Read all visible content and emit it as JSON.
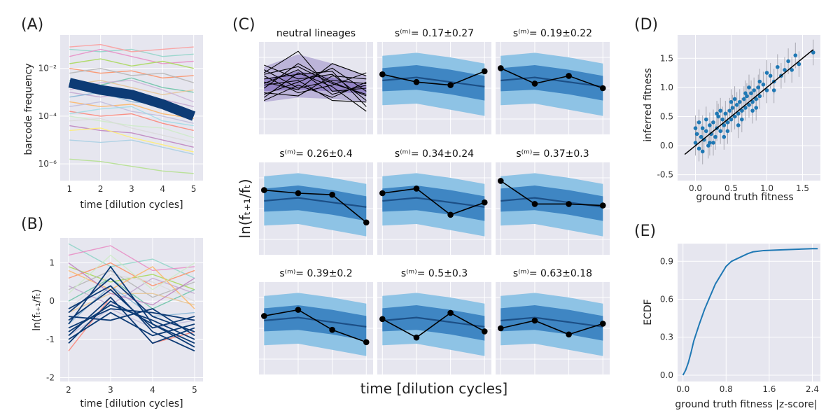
{
  "colors": {
    "panel_bg": "#e6e6ef",
    "grid": "#ffffff",
    "bright_blue": "#0d3b75",
    "blue_outer": "#8ec3e5",
    "blue_inner": "#3f86c3",
    "blue_line": "#1c4f86",
    "purple_band": "#b7aed6",
    "purple_line": "#4a2e8a",
    "scatter_point": "#1f78b4",
    "ecdf_line": "#1f78b4",
    "black": "#000000"
  },
  "chart_data": [
    {
      "id": "A",
      "panel_label": "(A)",
      "type": "line",
      "xlabel": "time [dilution cycles]",
      "ylabel": "barcode frequency",
      "yscale": "log",
      "xlim": [
        0.7,
        5.3
      ],
      "ylim_log10": [
        -6.7,
        -0.6
      ],
      "xticks": [
        1,
        2,
        3,
        4,
        5
      ],
      "xtick_labels": [
        "1",
        "2",
        "3",
        "4",
        "5"
      ],
      "yticks_log10": [
        -2,
        -4,
        -6
      ],
      "ytick_labels": [
        "10⁻²",
        "10⁻⁴",
        "10⁻⁶"
      ],
      "x": [
        1,
        2,
        3,
        4,
        5
      ],
      "highlight_series": {
        "values_log10": [
          -2.6,
          -2.9,
          -3.1,
          -3.5,
          -4.0
        ]
      },
      "background_series_log10": [
        [
          -1.2,
          -1.3,
          -1.2,
          -1.5,
          -1.4
        ],
        [
          -1.5,
          -1.2,
          -1.5,
          -1.8,
          -1.7
        ],
        [
          -1.8,
          -1.6,
          -1.9,
          -1.7,
          -2.0
        ],
        [
          -2.0,
          -2.2,
          -2.1,
          -2.4,
          -2.3
        ],
        [
          -2.2,
          -2.0,
          -2.3,
          -2.2,
          -2.6
        ],
        [
          -2.5,
          -2.7,
          -2.4,
          -2.8,
          -3.0
        ],
        [
          -2.7,
          -2.5,
          -2.8,
          -3.1,
          -2.9
        ],
        [
          -3.0,
          -3.2,
          -3.0,
          -3.3,
          -3.6
        ],
        [
          -3.2,
          -3.0,
          -3.4,
          -3.5,
          -3.8
        ],
        [
          -3.4,
          -3.6,
          -3.5,
          -3.9,
          -4.1
        ],
        [
          -3.6,
          -3.4,
          -3.8,
          -4.0,
          -4.3
        ],
        [
          -3.8,
          -4.0,
          -3.9,
          -4.3,
          -4.6
        ],
        [
          -4.0,
          -4.2,
          -4.4,
          -4.5,
          -4.9
        ],
        [
          -4.2,
          -4.1,
          -4.5,
          -4.8,
          -5.1
        ],
        [
          -4.4,
          -4.6,
          -4.7,
          -5.0,
          -5.3
        ],
        [
          -4.6,
          -4.5,
          -4.9,
          -5.2,
          -5.5
        ],
        [
          -5.0,
          -5.1,
          -5.0,
          -5.3,
          -5.6
        ],
        [
          -5.8,
          -5.9,
          -6.1,
          -6.3,
          -6.4
        ],
        [
          -1.1,
          -1.0,
          -1.3,
          -1.2,
          -1.1
        ],
        [
          -2.9,
          -2.6,
          -2.5,
          -2.9,
          -3.4
        ],
        [
          -3.9,
          -3.7,
          -3.6,
          -4.2,
          -4.4
        ]
      ]
    },
    {
      "id": "B",
      "panel_label": "(B)",
      "type": "line",
      "xlabel": "time [dilution cycles]",
      "ylabel": "ln(fₜ₊₁/fₜ)",
      "xlim": [
        1.8,
        5.2
      ],
      "ylim": [
        -2.1,
        1.65
      ],
      "xticks": [
        2,
        3,
        4,
        5
      ],
      "xtick_labels": [
        "2",
        "3",
        "4",
        "5"
      ],
      "yticks": [
        1,
        0,
        -1,
        -2
      ],
      "ytick_labels": [
        "1",
        "0",
        "-1",
        "-2"
      ],
      "x": [
        2,
        3,
        4,
        5
      ],
      "background_series": [
        [
          1.5,
          0.9,
          1.1,
          0.6
        ],
        [
          1.2,
          1.45,
          0.8,
          0.9
        ],
        [
          0.9,
          0.5,
          0.7,
          0.3
        ],
        [
          0.6,
          1.0,
          0.4,
          0.8
        ],
        [
          0.3,
          0.8,
          0.1,
          0.5
        ],
        [
          0.0,
          0.6,
          -0.2,
          0.3
        ],
        [
          -0.3,
          0.2,
          0.2,
          -0.1
        ],
        [
          0.4,
          -0.1,
          0.6,
          0.2
        ],
        [
          -0.6,
          0.4,
          -0.4,
          -0.3
        ],
        [
          0.8,
          0.3,
          0.9,
          -0.2
        ],
        [
          -0.9,
          -0.2,
          -0.7,
          -0.5
        ],
        [
          -1.3,
          0.1,
          -1.1,
          -0.8
        ],
        [
          0.2,
          1.2,
          0.3,
          1.0
        ],
        [
          -0.2,
          0.7,
          0.5,
          0.0
        ],
        [
          1.0,
          0.2,
          -0.1,
          0.6
        ]
      ],
      "highlight_series": [
        [
          -0.5,
          0.3,
          -0.7,
          -0.4
        ],
        [
          -0.8,
          -0.1,
          -0.5,
          -1.0
        ],
        [
          -0.3,
          0.6,
          -0.4,
          -0.8
        ],
        [
          -1.0,
          -0.3,
          -0.9,
          -0.6
        ],
        [
          -0.6,
          0.9,
          -0.6,
          -1.2
        ],
        [
          -0.4,
          -0.5,
          -0.2,
          -0.9
        ],
        [
          -0.9,
          0.1,
          -1.1,
          -0.7
        ],
        [
          -0.2,
          0.4,
          -0.8,
          -1.3
        ],
        [
          -0.7,
          -0.2,
          -0.3,
          -0.5
        ],
        [
          -1.1,
          0.0,
          -0.6,
          -1.1
        ]
      ]
    },
    {
      "id": "C",
      "panel_label": "(C)",
      "type": "line",
      "xlabel": "time [dilution cycles]",
      "ylabel": "ln(fₜ₊₁/fₜ)",
      "x": [
        1,
        2,
        3,
        4
      ],
      "ylim": [
        -3,
        3
      ],
      "subplots": [
        {
          "kind": "neutral",
          "title": "neutral lineages",
          "band_outer_low": [
            -0.9,
            -0.6,
            -0.7,
            -0.9
          ],
          "band_outer_high": [
            1.4,
            2.2,
            1.6,
            0.8
          ],
          "band_inner_low": [
            -0.2,
            -0.1,
            -0.2,
            -0.4
          ],
          "band_inner_high": [
            0.6,
            1.1,
            0.7,
            0.2
          ],
          "lines": [
            [
              0.3,
              1.2,
              -0.4,
              0.2
            ],
            [
              1.5,
              0.6,
              0.9,
              -0.8
            ],
            [
              -0.4,
              0.4,
              1.3,
              -0.2
            ],
            [
              0.8,
              -0.3,
              0.2,
              1.0
            ],
            [
              0.0,
              1.6,
              0.4,
              -0.5
            ],
            [
              -0.8,
              0.2,
              -0.6,
              0.4
            ],
            [
              0.6,
              0.9,
              1.1,
              -1.2
            ],
            [
              1.0,
              2.4,
              -0.2,
              0.0
            ],
            [
              -0.3,
              -0.5,
              0.8,
              0.6
            ],
            [
              0.2,
              0.5,
              -0.8,
              -0.9
            ],
            [
              1.2,
              0.0,
              0.5,
              0.3
            ],
            [
              -0.6,
              1.0,
              0.1,
              -1.5
            ],
            [
              0.4,
              -0.1,
              1.6,
              0.8
            ],
            [
              0.9,
              1.4,
              0.3,
              -0.4
            ]
          ]
        },
        {
          "kind": "fit",
          "title": "s⁽ᵐ⁾= 0.17±0.27",
          "outer_low": [
            -1.1,
            -1.0,
            -1.4,
            -1.8
          ],
          "outer_high": [
            2.1,
            2.3,
            2.0,
            1.6
          ],
          "inner_low": [
            -0.2,
            -0.1,
            -0.4,
            -0.8
          ],
          "inner_high": [
            1.3,
            1.5,
            1.2,
            0.8
          ],
          "median": [
            0.5,
            0.7,
            0.4,
            0.1
          ],
          "obs": [
            0.9,
            0.4,
            0.2,
            1.1
          ]
        },
        {
          "kind": "fit",
          "title": "s⁽ᵐ⁾= 0.19±0.22",
          "outer_low": [
            -1.1,
            -1.0,
            -1.4,
            -1.8
          ],
          "outer_high": [
            2.1,
            2.3,
            2.0,
            1.6
          ],
          "inner_low": [
            -0.2,
            -0.1,
            -0.4,
            -0.8
          ],
          "inner_high": [
            1.3,
            1.5,
            1.2,
            0.8
          ],
          "median": [
            0.5,
            0.7,
            0.4,
            0.1
          ],
          "obs": [
            1.3,
            0.3,
            0.8,
            0.0
          ]
        },
        {
          "kind": "fit",
          "title": "s⁽ᵐ⁾= 0.26±0.4",
          "outer_low": [
            -1.1,
            -1.0,
            -1.4,
            -1.8
          ],
          "outer_high": [
            2.1,
            2.3,
            2.0,
            1.6
          ],
          "inner_low": [
            -0.2,
            -0.1,
            -0.4,
            -0.8
          ],
          "inner_high": [
            1.3,
            1.5,
            1.2,
            0.8
          ],
          "median": [
            0.5,
            0.7,
            0.4,
            0.1
          ],
          "obs": [
            1.2,
            1.0,
            0.9,
            -0.9
          ]
        },
        {
          "kind": "fit",
          "title": "s⁽ᵐ⁾= 0.34±0.24",
          "outer_low": [
            -1.1,
            -1.0,
            -1.4,
            -1.8
          ],
          "outer_high": [
            2.1,
            2.3,
            2.0,
            1.6
          ],
          "inner_low": [
            -0.2,
            -0.1,
            -0.4,
            -0.8
          ],
          "inner_high": [
            1.3,
            1.5,
            1.2,
            0.8
          ],
          "median": [
            0.5,
            0.7,
            0.4,
            0.1
          ],
          "obs": [
            1.0,
            1.3,
            -0.4,
            0.4
          ]
        },
        {
          "kind": "fit",
          "title": "s⁽ᵐ⁾= 0.37±0.3",
          "outer_low": [
            -1.1,
            -1.0,
            -1.4,
            -1.8
          ],
          "outer_high": [
            2.1,
            2.3,
            2.0,
            1.6
          ],
          "inner_low": [
            -0.2,
            -0.1,
            -0.4,
            -0.8
          ],
          "inner_high": [
            1.3,
            1.5,
            1.2,
            0.8
          ],
          "median": [
            0.5,
            0.7,
            0.4,
            0.1
          ],
          "obs": [
            1.8,
            0.3,
            0.3,
            0.2
          ]
        },
        {
          "kind": "fit",
          "title": "s⁽ᵐ⁾= 0.39±0.2",
          "outer_low": [
            -1.1,
            -1.0,
            -1.4,
            -1.8
          ],
          "outer_high": [
            2.1,
            2.3,
            2.0,
            1.6
          ],
          "inner_low": [
            -0.2,
            -0.1,
            -0.4,
            -0.8
          ],
          "inner_high": [
            1.3,
            1.5,
            1.2,
            0.8
          ],
          "median": [
            0.5,
            0.7,
            0.4,
            0.1
          ],
          "obs": [
            0.8,
            1.2,
            -0.1,
            -0.9
          ]
        },
        {
          "kind": "fit",
          "title": "s⁽ᵐ⁾= 0.5±0.3",
          "outer_low": [
            -1.1,
            -1.0,
            -1.4,
            -1.8
          ],
          "outer_high": [
            2.1,
            2.3,
            2.0,
            1.6
          ],
          "inner_low": [
            -0.2,
            -0.1,
            -0.4,
            -0.8
          ],
          "inner_high": [
            1.3,
            1.5,
            1.2,
            0.8
          ],
          "median": [
            0.5,
            0.7,
            0.4,
            0.1
          ],
          "obs": [
            0.6,
            -0.6,
            1.0,
            -0.2
          ]
        },
        {
          "kind": "fit",
          "title": "s⁽ᵐ⁾= 0.63±0.18",
          "outer_low": [
            -1.1,
            -1.0,
            -1.4,
            -1.8
          ],
          "outer_high": [
            2.1,
            2.3,
            2.0,
            1.6
          ],
          "inner_low": [
            -0.2,
            -0.1,
            -0.4,
            -0.8
          ],
          "inner_high": [
            1.3,
            1.5,
            1.2,
            0.8
          ],
          "median": [
            0.5,
            0.7,
            0.4,
            0.1
          ],
          "obs": [
            0.0,
            0.5,
            -0.4,
            0.3
          ]
        }
      ]
    },
    {
      "id": "D",
      "panel_label": "(D)",
      "type": "scatter",
      "xlabel": "ground truth fitness",
      "ylabel": "inferred fitness",
      "xlim": [
        -0.25,
        1.75
      ],
      "ylim": [
        -0.6,
        1.9
      ],
      "xticks": [
        0,
        0.5,
        1,
        1.5
      ],
      "xtick_labels": [
        "0.0",
        "0.5",
        "1.0",
        "1.5"
      ],
      "yticks": [
        -0.5,
        0,
        0.5,
        1,
        1.5
      ],
      "ytick_labels": [
        "-0.5",
        "0.0",
        "0.5",
        "1.0",
        "1.5"
      ],
      "identity_line": [
        [
          -0.15,
          -0.15
        ],
        [
          1.65,
          1.65
        ]
      ],
      "points": [
        [
          0.0,
          0.05
        ],
        [
          0.02,
          0.2
        ],
        [
          0.05,
          -0.05
        ],
        [
          0.08,
          0.15
        ],
        [
          0.1,
          0.3
        ],
        [
          0.12,
          0.1
        ],
        [
          0.15,
          0.25
        ],
        [
          0.18,
          0.0
        ],
        [
          0.2,
          0.35
        ],
        [
          0.22,
          0.2
        ],
        [
          0.25,
          0.4
        ],
        [
          0.28,
          0.15
        ],
        [
          0.3,
          0.3
        ],
        [
          0.32,
          0.5
        ],
        [
          0.35,
          0.25
        ],
        [
          0.38,
          0.45
        ],
        [
          0.4,
          0.35
        ],
        [
          0.42,
          0.55
        ],
        [
          0.45,
          0.4
        ],
        [
          0.48,
          0.6
        ],
        [
          0.5,
          0.45
        ],
        [
          0.52,
          0.65
        ],
        [
          0.55,
          0.5
        ],
        [
          0.58,
          0.7
        ],
        [
          0.6,
          0.55
        ],
        [
          0.62,
          0.75
        ],
        [
          0.65,
          0.6
        ],
        [
          0.68,
          0.8
        ],
        [
          0.7,
          0.65
        ],
        [
          0.72,
          0.85
        ],
        [
          0.75,
          0.7
        ],
        [
          0.78,
          0.9
        ],
        [
          0.8,
          0.75
        ],
        [
          0.82,
          0.95
        ],
        [
          0.85,
          0.8
        ],
        [
          0.88,
          1.0
        ],
        [
          0.9,
          0.85
        ],
        [
          0.95,
          1.05
        ],
        [
          1.0,
          0.95
        ],
        [
          1.05,
          1.2
        ],
        [
          1.1,
          1.1
        ],
        [
          1.15,
          1.35
        ],
        [
          1.2,
          1.2
        ],
        [
          1.25,
          1.3
        ],
        [
          1.3,
          1.45
        ],
        [
          1.35,
          1.3
        ],
        [
          1.4,
          1.55
        ],
        [
          1.45,
          1.4
        ],
        [
          1.65,
          1.6
        ],
        [
          0.0,
          0.3
        ],
        [
          0.05,
          0.4
        ],
        [
          0.1,
          -0.1
        ],
        [
          0.2,
          0.05
        ],
        [
          0.3,
          0.55
        ],
        [
          0.4,
          0.15
        ],
        [
          0.5,
          0.75
        ],
        [
          0.6,
          0.35
        ],
        [
          0.7,
          0.9
        ],
        [
          0.8,
          0.6
        ],
        [
          0.9,
          1.1
        ],
        [
          0.15,
          0.45
        ],
        [
          0.25,
          0.05
        ],
        [
          0.35,
          0.6
        ],
        [
          0.45,
          0.25
        ],
        [
          0.55,
          0.8
        ],
        [
          0.65,
          0.45
        ],
        [
          0.75,
          1.0
        ],
        [
          0.85,
          0.65
        ],
        [
          1.0,
          1.25
        ],
        [
          1.1,
          0.95
        ]
      ]
    },
    {
      "id": "E",
      "panel_label": "(E)",
      "type": "line",
      "xlabel": "ground truth fitness |z-score|",
      "ylabel": "ECDF",
      "xlim": [
        -0.1,
        2.55
      ],
      "ylim": [
        -0.05,
        1.04
      ],
      "xticks": [
        0,
        0.8,
        1.6,
        2.4
      ],
      "xtick_labels": [
        "0.0",
        "0.8",
        "1.6",
        "2.4"
      ],
      "yticks": [
        0,
        0.3,
        0.6,
        0.9
      ],
      "ytick_labels": [
        "0.0",
        "0.3",
        "0.6",
        "0.9"
      ],
      "x": [
        0.0,
        0.05,
        0.1,
        0.15,
        0.2,
        0.3,
        0.4,
        0.5,
        0.6,
        0.7,
        0.8,
        0.9,
        1.0,
        1.1,
        1.2,
        1.3,
        1.5,
        1.8,
        2.1,
        2.4,
        2.5
      ],
      "y": [
        0.0,
        0.04,
        0.1,
        0.18,
        0.27,
        0.4,
        0.52,
        0.62,
        0.72,
        0.79,
        0.86,
        0.9,
        0.92,
        0.94,
        0.96,
        0.975,
        0.985,
        0.99,
        0.995,
        1.0,
        1.0
      ]
    }
  ],
  "shared_labels": {
    "c_ylabel": "ln(fₜ₊₁/fₜ)",
    "c_xlabel": "time [dilution cycles]"
  }
}
